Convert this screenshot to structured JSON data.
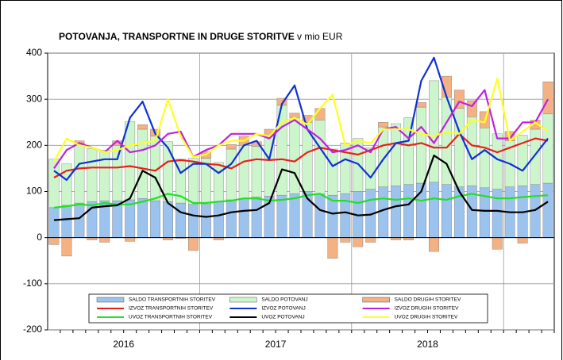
{
  "chart_data": {
    "type": "stacked_bar_line",
    "title": "POTOVANJA, TRANSPORTNE IN DRUGE STORITVE",
    "title_unit": "v mio EUR",
    "year_labels": [
      "2016",
      "2017",
      "2018"
    ],
    "categories": [
      null,
      null,
      null,
      null,
      null,
      null,
      null,
      null,
      null,
      null,
      null,
      null,
      null,
      null,
      null,
      null,
      null,
      null,
      null,
      null,
      null,
      null,
      null,
      null,
      null,
      null,
      null,
      null,
      null,
      null,
      null,
      null,
      null,
      null,
      null,
      null,
      null,
      null,
      null,
      null
    ],
    "ylim": [
      -200,
      400
    ],
    "yticks": [
      -200,
      -100,
      0,
      100,
      200,
      300,
      400
    ],
    "grid": true,
    "bar_series": [
      {
        "name": "SALDO TRANSPORTNIH STORITEV",
        "color": "#9cc3ee",
        "values": [
          65,
          70,
          75,
          78,
          80,
          80,
          82,
          85,
          80,
          78,
          75,
          72,
          72,
          78,
          82,
          85,
          88,
          90,
          92,
          95,
          100,
          95,
          92,
          95,
          100,
          105,
          110,
          112,
          115,
          118,
          120,
          115,
          110,
          112,
          108,
          105,
          110,
          112,
          115,
          118
        ]
      },
      {
        "name": "SALDO POTOVANJ",
        "color": "#ccf5cc",
        "values": [
          105,
          90,
          130,
          115,
          110,
          120,
          170,
          150,
          140,
          130,
          95,
          100,
          100,
          85,
          110,
          115,
          110,
          130,
          195,
          165,
          150,
          160,
          100,
          110,
          115,
          90,
          130,
          135,
          145,
          165,
          220,
          190,
          170,
          150,
          130,
          120,
          100,
          110,
          120,
          150
        ]
      },
      {
        "name": "SALDO DRUGIH STORITEV",
        "color": "#f4b183",
        "values": [
          -15,
          -40,
          5,
          -5,
          -10,
          10,
          -8,
          10,
          15,
          -5,
          -2,
          -28,
          15,
          -5,
          10,
          20,
          10,
          15,
          15,
          10,
          15,
          25,
          -45,
          -10,
          -20,
          -10,
          10,
          -5,
          -5,
          10,
          -30,
          45,
          40,
          35,
          35,
          -25,
          20,
          -12,
          20,
          70
        ]
      }
    ],
    "line_series": [
      {
        "name": "IZVOZ TRANSPORTNIH STORITEV",
        "color": "#e8201a",
        "values": [
          130,
          145,
          150,
          152,
          152,
          152,
          155,
          150,
          145,
          165,
          168,
          165,
          160,
          158,
          150,
          165,
          170,
          168,
          170,
          165,
          185,
          195,
          190,
          185,
          180,
          190,
          200,
          205,
          200,
          205,
          195,
          195,
          225,
          200,
          195,
          185,
          195,
          205,
          215,
          210
        ]
      },
      {
        "name": "IZVOZ POTOVANJ",
        "color": "#1030d8",
        "values": [
          145,
          125,
          160,
          165,
          170,
          170,
          260,
          295,
          225,
          195,
          140,
          160,
          160,
          140,
          160,
          200,
          210,
          170,
          290,
          330,
          235,
          195,
          155,
          170,
          160,
          130,
          170,
          205,
          210,
          340,
          390,
          305,
          230,
          170,
          190,
          170,
          160,
          145,
          180,
          215
        ]
      },
      {
        "name": "IZVOZ DRUGIH STORITEV",
        "color": "#c020e0",
        "values": [
          150,
          190,
          205,
          195,
          185,
          210,
          185,
          190,
          200,
          225,
          230,
          175,
          190,
          200,
          225,
          225,
          225,
          215,
          240,
          255,
          235,
          215,
          185,
          190,
          200,
          185,
          235,
          240,
          215,
          240,
          205,
          250,
          295,
          285,
          320,
          215,
          215,
          250,
          250,
          300
        ]
      },
      {
        "name": "UVOZ TRANSPORTNIH STORITEV",
        "color": "#22e022",
        "values": [
          65,
          68,
          72,
          70,
          75,
          72,
          72,
          78,
          85,
          95,
          90,
          75,
          75,
          78,
          80,
          85,
          85,
          80,
          82,
          85,
          92,
          95,
          80,
          80,
          75,
          82,
          85,
          82,
          85,
          80,
          85,
          82,
          90,
          95,
          90,
          85,
          85,
          88,
          90,
          92
        ]
      },
      {
        "name": "UVOZ POTOVANJ",
        "color": "#000000",
        "values": [
          38,
          40,
          42,
          65,
          68,
          70,
          85,
          145,
          130,
          75,
          55,
          48,
          45,
          48,
          55,
          58,
          60,
          75,
          148,
          140,
          85,
          60,
          52,
          55,
          48,
          50,
          60,
          68,
          72,
          100,
          178,
          160,
          100,
          60,
          58,
          58,
          55,
          55,
          60,
          78
        ]
      },
      {
        "name": "UVOZ DRUGIH STORITEV",
        "color": "#ffff20",
        "values": [
          165,
          215,
          200,
          195,
          185,
          190,
          200,
          205,
          210,
          300,
          220,
          175,
          180,
          200,
          210,
          210,
          225,
          220,
          250,
          260,
          245,
          280,
          310,
          200,
          210,
          205,
          235,
          235,
          235,
          225,
          220,
          230,
          225,
          255,
          250,
          345,
          210,
          230,
          250,
          230
        ]
      }
    ]
  }
}
